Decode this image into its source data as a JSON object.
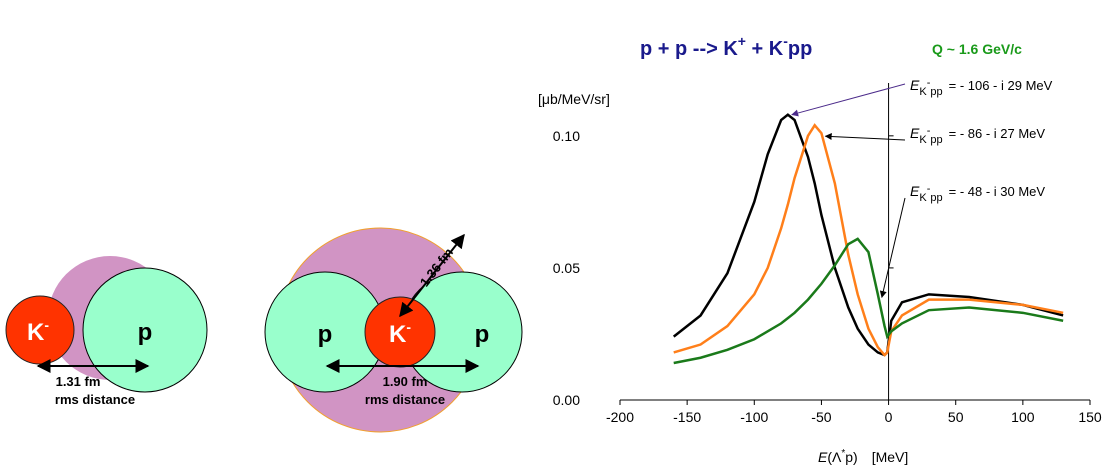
{
  "title": {
    "parts": [
      "p + p --> K",
      "+",
      " + K",
      "-",
      "pp"
    ]
  },
  "q_label": "Q ~ 1.6 GeV/c",
  "diagrams": [
    {
      "kaon": {
        "symbol": "K",
        "charge": "-"
      },
      "proton": "p",
      "distance": "1.31 fm",
      "caption": "rms distance"
    },
    {
      "protons": [
        "p",
        "p"
      ],
      "kaon": {
        "symbol": "K",
        "charge": "-"
      },
      "radius": "1.36 fm",
      "distance": "1.90 fm",
      "caption": "rms distance"
    }
  ],
  "chart_data": {
    "type": "line",
    "y_label": "[μb/MeV/sr]",
    "x_label": {
      "variable": "E",
      "paren_open": "(Λ",
      "star": "*",
      "paren_close": "p)",
      "unit": "[MeV]"
    },
    "x": [
      -160,
      -140,
      -120,
      -100,
      -90,
      -80,
      -75,
      -70,
      -60,
      -55,
      -50,
      -40,
      -30,
      -23,
      -15,
      -8,
      -3,
      -1,
      2,
      10,
      30,
      60,
      100,
      130
    ],
    "series": [
      {
        "name": "- 106 - i 29 MeV",
        "label": {
          "variable": "E",
          "sub": "K",
          "sup": "-",
          "sub2": "pp",
          "text": "= - 106 - i 29 MeV"
        },
        "color": "#000000",
        "values": [
          0.024,
          0.032,
          0.048,
          0.075,
          0.093,
          0.106,
          0.108,
          0.106,
          0.092,
          0.082,
          0.07,
          0.05,
          0.035,
          0.027,
          0.021,
          0.018,
          0.017,
          0.018,
          0.03,
          0.037,
          0.04,
          0.039,
          0.036,
          0.032
        ]
      },
      {
        "name": "- 86 - i 27 MeV",
        "label": {
          "variable": "E",
          "sub": "K",
          "sup": "-",
          "sub2": "pp",
          "text": "= - 86 - i 27 MeV"
        },
        "color": "#ff7f1a",
        "values": [
          0.018,
          0.021,
          0.028,
          0.04,
          0.05,
          0.065,
          0.074,
          0.084,
          0.1,
          0.104,
          0.101,
          0.082,
          0.055,
          0.04,
          0.027,
          0.02,
          0.017,
          0.018,
          0.026,
          0.032,
          0.038,
          0.038,
          0.036,
          0.033
        ]
      },
      {
        "name": "- 48 - i 30 MeV",
        "label": {
          "variable": "E",
          "sub": "K",
          "sup": "-",
          "sub2": "pp",
          "text": "= - 48 - i 30 MeV"
        },
        "color": "#1a7a1a",
        "values": [
          0.014,
          0.016,
          0.019,
          0.023,
          0.026,
          0.029,
          0.031,
          0.033,
          0.038,
          0.041,
          0.044,
          0.051,
          0.059,
          0.061,
          0.056,
          0.04,
          0.028,
          0.024,
          0.026,
          0.029,
          0.034,
          0.035,
          0.033,
          0.03
        ]
      }
    ],
    "xlim": [
      -200,
      150
    ],
    "xticks": [
      -200,
      -150,
      -100,
      -50,
      0,
      50,
      100,
      150
    ],
    "ylim": [
      0,
      0.12
    ],
    "yticks": [
      {
        "value": 0,
        "label": "0.00"
      },
      0.05,
      {
        "value": 0.1,
        "label": "0.10"
      }
    ]
  }
}
